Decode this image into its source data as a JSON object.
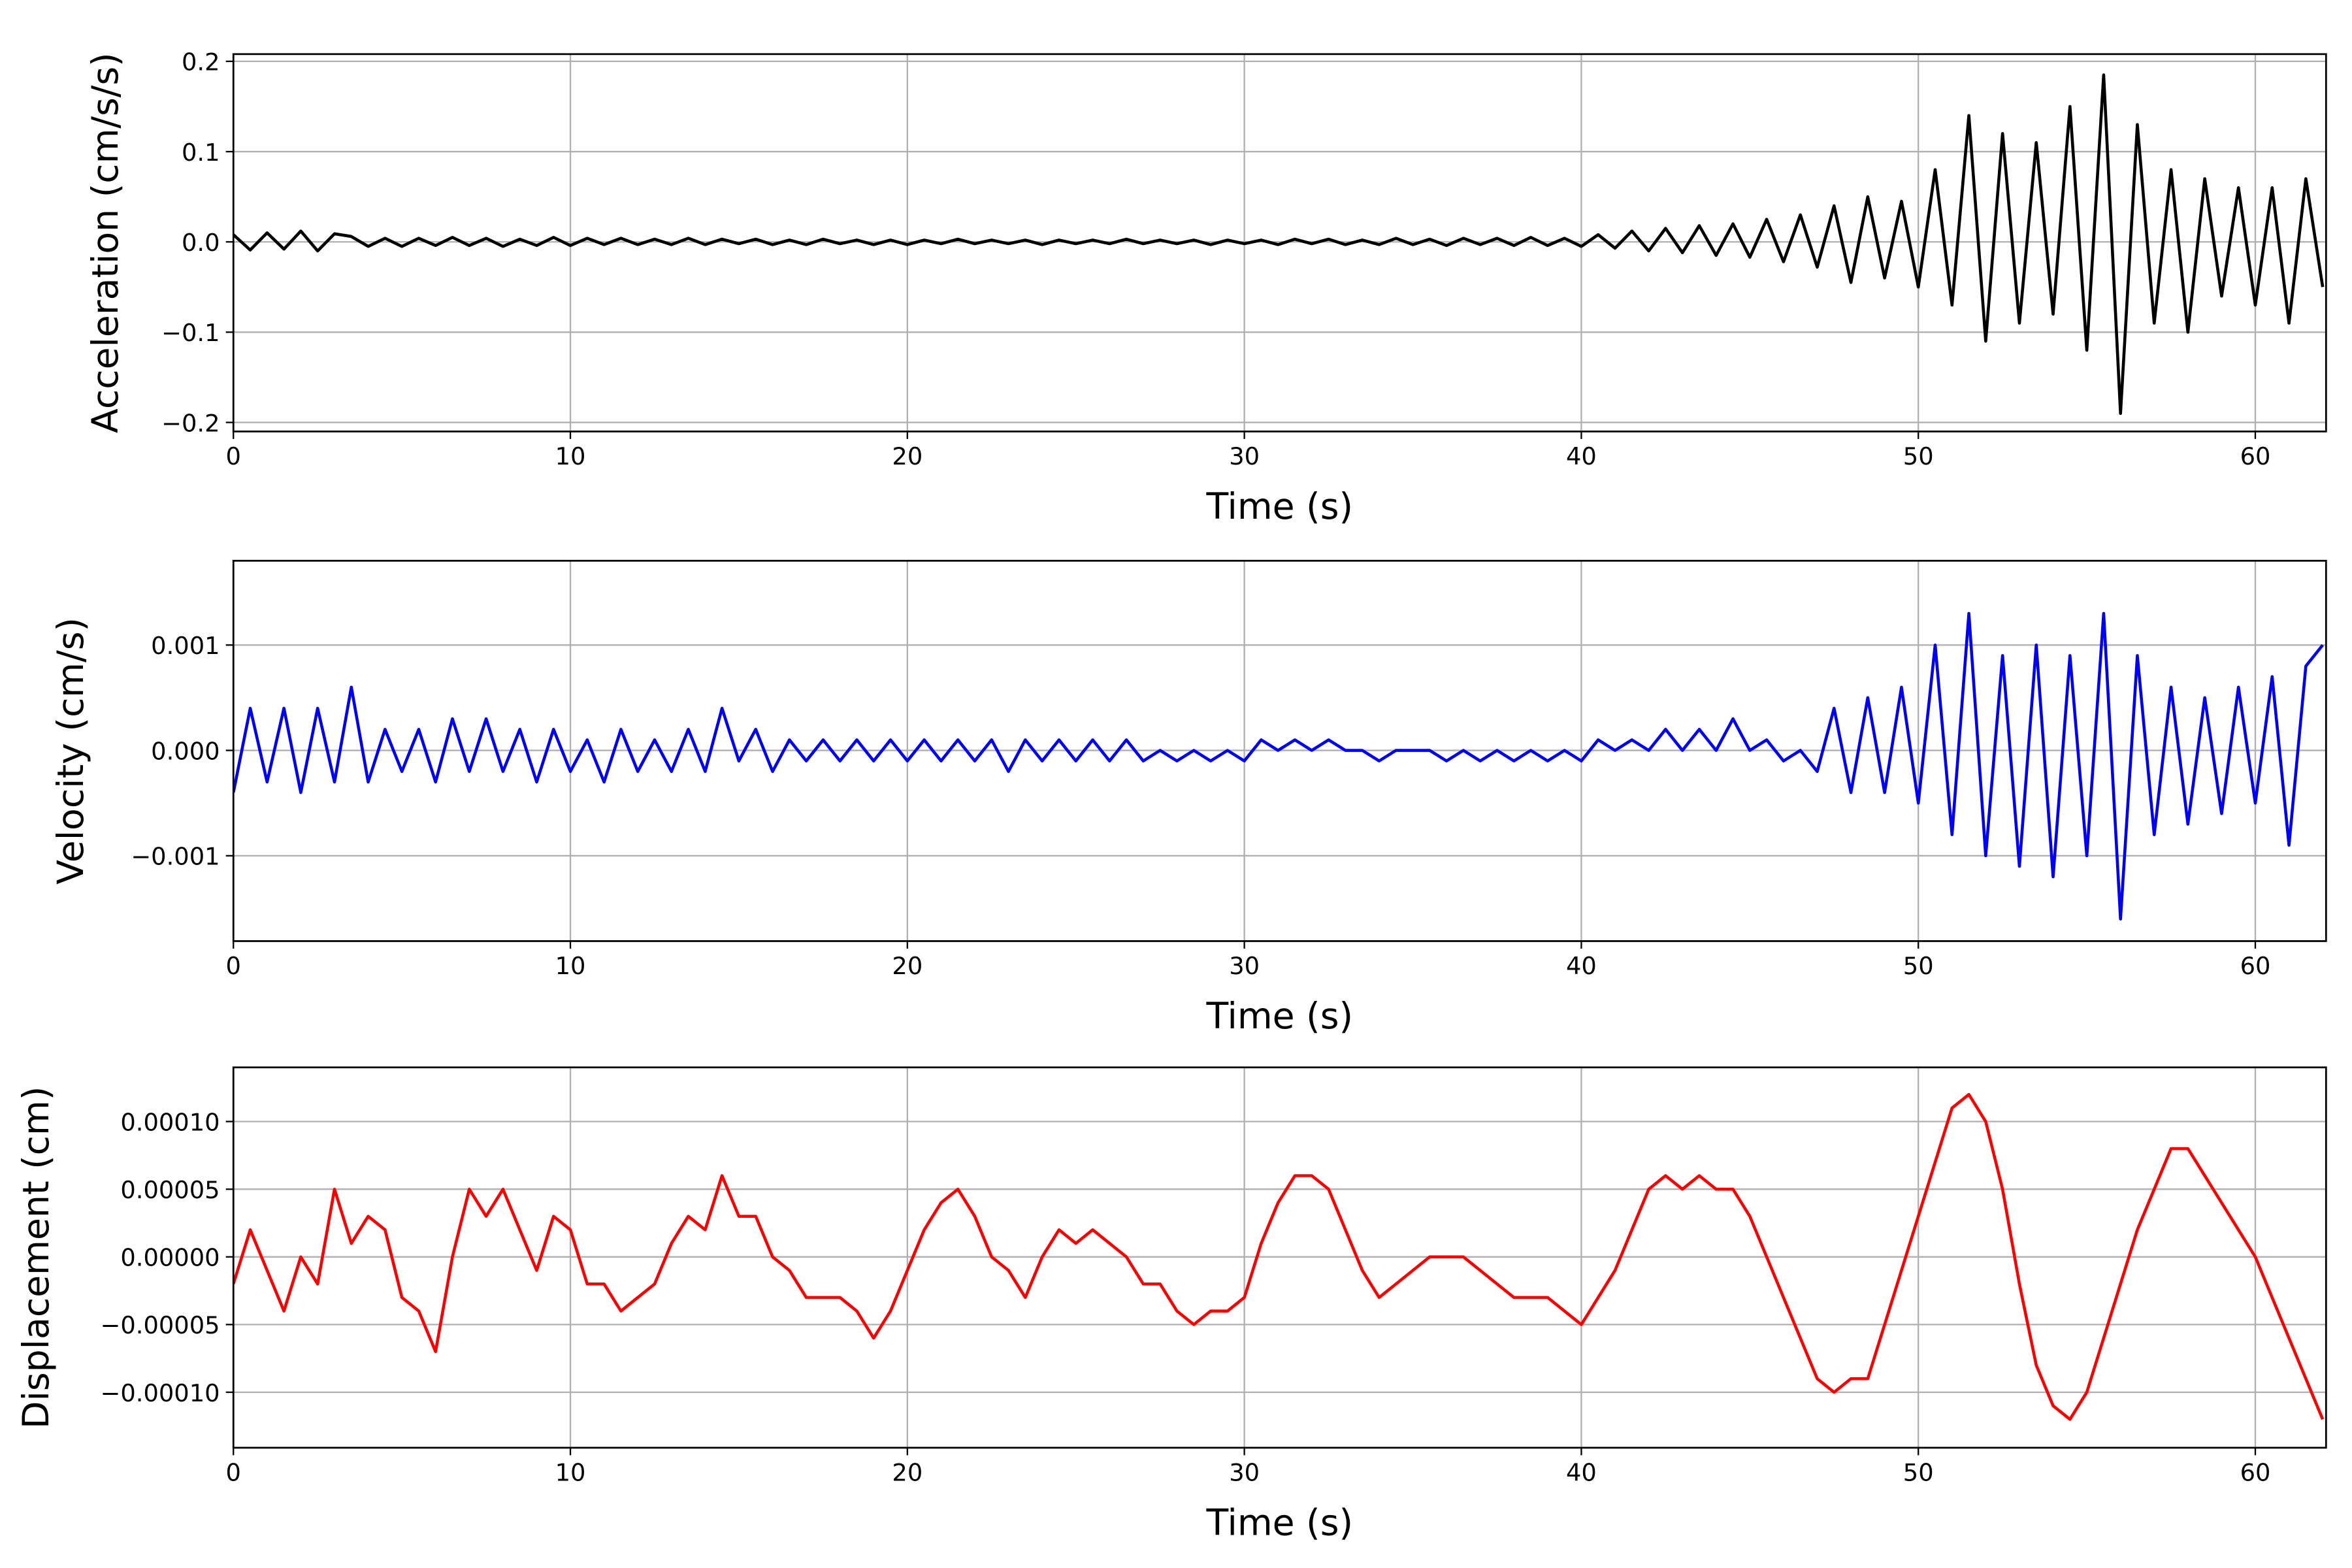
{
  "chart_data": [
    {
      "type": "line",
      "xlabel": "Time (s)",
      "ylabel": "Acceleration (cm/s/s)",
      "grid": true,
      "xlim": [
        0,
        62.1
      ],
      "xticks": [
        0,
        10,
        20,
        30,
        40,
        50,
        60
      ],
      "ylim": [
        -0.21,
        0.208
      ],
      "yticks": [
        {
          "value": -0.2,
          "label": "−0.2"
        },
        {
          "value": -0.1,
          "label": "−0.1"
        },
        {
          "value": 0,
          "label": "0.0"
        },
        0.1,
        0.2
      ],
      "x": [
        0,
        0.5,
        1,
        1.5,
        2,
        2.5,
        3,
        3.5,
        4,
        4.5,
        5,
        5.5,
        6,
        6.5,
        7,
        7.5,
        8,
        8.5,
        9,
        9.5,
        10,
        10.5,
        11,
        11.5,
        12,
        12.5,
        13,
        13.5,
        14,
        14.5,
        15,
        15.5,
        16,
        16.5,
        17,
        17.5,
        18,
        18.5,
        19,
        19.5,
        20,
        20.5,
        21,
        21.5,
        22,
        22.5,
        23,
        23.5,
        24,
        24.5,
        25,
        25.5,
        26,
        26.5,
        27,
        27.5,
        28,
        28.5,
        29,
        29.5,
        30,
        30.5,
        31,
        31.5,
        32,
        32.5,
        33,
        33.5,
        34,
        34.5,
        35,
        35.5,
        36,
        36.5,
        37,
        37.5,
        38,
        38.5,
        39,
        39.5,
        40,
        40.5,
        41,
        41.5,
        42,
        42.5,
        43,
        43.5,
        44,
        44.5,
        45,
        45.5,
        46,
        46.5,
        47,
        47.5,
        48,
        48.5,
        49,
        49.5,
        50,
        50.5,
        51,
        51.5,
        52,
        52.5,
        53,
        53.5,
        54,
        54.5,
        55,
        55.5,
        56,
        56.5,
        57,
        57.5,
        58,
        58.5,
        59,
        59.5,
        60,
        60.5,
        61,
        61.5,
        62
      ],
      "series": [
        {
          "color": "#000000",
          "values": [
            0.008,
            -0.009,
            0.01,
            -0.008,
            0.012,
            -0.01,
            0.009,
            0.006,
            -0.005,
            0.004,
            -0.005,
            0.004,
            -0.004,
            0.005,
            -0.004,
            0.004,
            -0.005,
            0.003,
            -0.004,
            0.005,
            -0.004,
            0.004,
            -0.003,
            0.004,
            -0.003,
            0.003,
            -0.003,
            0.004,
            -0.003,
            0.003,
            -0.002,
            0.003,
            -0.003,
            0.002,
            -0.003,
            0.003,
            -0.002,
            0.002,
            -0.003,
            0.002,
            -0.003,
            0.002,
            -0.002,
            0.003,
            -0.002,
            0.002,
            -0.002,
            0.002,
            -0.003,
            0.002,
            -0.002,
            0.002,
            -0.002,
            0.003,
            -0.002,
            0.002,
            -0.002,
            0.002,
            -0.003,
            0.002,
            -0.002,
            0.002,
            -0.003,
            0.003,
            -0.002,
            0.003,
            -0.003,
            0.002,
            -0.003,
            0.004,
            -0.003,
            0.003,
            -0.004,
            0.004,
            -0.003,
            0.004,
            -0.004,
            0.005,
            -0.004,
            0.004,
            -0.005,
            0.008,
            -0.007,
            0.012,
            -0.01,
            0.015,
            -0.012,
            0.018,
            -0.015,
            0.02,
            -0.017,
            0.025,
            -0.022,
            0.03,
            -0.028,
            0.04,
            -0.045,
            0.05,
            -0.04,
            0.045,
            -0.05,
            0.08,
            -0.07,
            0.14,
            -0.11,
            0.12,
            -0.09,
            0.11,
            -0.08,
            0.15,
            -0.12,
            0.185,
            -0.19,
            0.13,
            -0.09,
            0.08,
            -0.1,
            0.07,
            -0.06,
            0.06,
            -0.07,
            0.06,
            -0.09,
            0.07,
            -0.05
          ]
        }
      ]
    },
    {
      "type": "line",
      "xlabel": "Time (s)",
      "ylabel": "Velocity (cm/s)",
      "grid": true,
      "xlim": [
        0,
        62.1
      ],
      "xticks": [
        0,
        10,
        20,
        30,
        40,
        50,
        60
      ],
      "ylim": [
        -0.00181,
        0.0018
      ],
      "yticks": [
        {
          "value": -0.001,
          "label": "−0.001"
        },
        {
          "value": 0,
          "label": "0.000"
        },
        0.001
      ],
      "x": [
        0,
        0.5,
        1,
        1.5,
        2,
        2.5,
        3,
        3.5,
        4,
        4.5,
        5,
        5.5,
        6,
        6.5,
        7,
        7.5,
        8,
        8.5,
        9,
        9.5,
        10,
        10.5,
        11,
        11.5,
        12,
        12.5,
        13,
        13.5,
        14,
        14.5,
        15,
        15.5,
        16,
        16.5,
        17,
        17.5,
        18,
        18.5,
        19,
        19.5,
        20,
        20.5,
        21,
        21.5,
        22,
        22.5,
        23,
        23.5,
        24,
        24.5,
        25,
        25.5,
        26,
        26.5,
        27,
        27.5,
        28,
        28.5,
        29,
        29.5,
        30,
        30.5,
        31,
        31.5,
        32,
        32.5,
        33,
        33.5,
        34,
        34.5,
        35,
        35.5,
        36,
        36.5,
        37,
        37.5,
        38,
        38.5,
        39,
        39.5,
        40,
        40.5,
        41,
        41.5,
        42,
        42.5,
        43,
        43.5,
        44,
        44.5,
        45,
        45.5,
        46,
        46.5,
        47,
        47.5,
        48,
        48.5,
        49,
        49.5,
        50,
        50.5,
        51,
        51.5,
        52,
        52.5,
        53,
        53.5,
        54,
        54.5,
        55,
        55.5,
        56,
        56.5,
        57,
        57.5,
        58,
        58.5,
        59,
        59.5,
        60,
        60.5,
        61,
        61.5,
        62
      ],
      "series": [
        {
          "color": "#0000ff",
          "values": [
            -0.0004,
            0.0004,
            -0.0003,
            0.0004,
            -0.0004,
            0.0004,
            -0.0003,
            0.0006,
            -0.0003,
            0.0002,
            -0.0002,
            0.0002,
            -0.0003,
            0.0003,
            -0.0002,
            0.0003,
            -0.0002,
            0.0002,
            -0.0003,
            0.0002,
            -0.0002,
            0.0001,
            -0.0003,
            0.0002,
            -0.0002,
            0.0001,
            -0.0002,
            0.0002,
            -0.0002,
            0.0004,
            -0.0001,
            0.0002,
            -0.0002,
            0.0001,
            -0.0001,
            0.0001,
            -0.0001,
            0.0001,
            -0.0001,
            0.0001,
            -0.0001,
            0.0001,
            -0.0001,
            0.0001,
            -0.0001,
            0.0001,
            -0.0002,
            0.0001,
            -0.0001,
            0.0001,
            -0.0001,
            0.0001,
            -0.0001,
            0.0001,
            -0.0001,
            0,
            -0.0001,
            0,
            -0.0001,
            0,
            -0.0001,
            0.0001,
            0,
            0.0001,
            0,
            0.0001,
            0,
            0,
            -0.0001,
            0,
            0,
            0,
            -0.0001,
            0,
            -0.0001,
            0,
            -0.0001,
            0,
            -0.0001,
            0,
            -0.0001,
            0.0001,
            0,
            0.0001,
            0,
            0.0002,
            0,
            0.0002,
            0,
            0.0003,
            0,
            0.0001,
            -0.0001,
            0,
            -0.0002,
            0.0004,
            -0.0004,
            0.0005,
            -0.0004,
            0.0006,
            -0.0005,
            0.001,
            -0.0008,
            0.0013,
            -0.001,
            0.0009,
            -0.0011,
            0.001,
            -0.0012,
            0.0009,
            -0.001,
            0.0013,
            -0.0016,
            0.0009,
            -0.0008,
            0.0006,
            -0.0007,
            0.0005,
            -0.0006,
            0.0006,
            -0.0005,
            0.0007,
            -0.0009,
            0.0008,
            0.001
          ]
        }
      ]
    },
    {
      "type": "line",
      "xlabel": "Time (s)",
      "ylabel": "Displacement (cm)",
      "grid": true,
      "xlim": [
        0,
        62.1
      ],
      "xticks": [
        0,
        10,
        20,
        30,
        40,
        50,
        60
      ],
      "ylim": [
        -0.000141,
        0.00014
      ],
      "yticks": [
        {
          "value": -0.0001,
          "label": "−0.00010"
        },
        {
          "value": -5e-05,
          "label": "−0.00005"
        },
        {
          "value": 0,
          "label": "0.00000"
        },
        {
          "value": 5e-05,
          "label": "0.00005"
        },
        {
          "value": 0.0001,
          "label": "0.00010"
        }
      ],
      "x": [
        0,
        0.5,
        1,
        1.5,
        2,
        2.5,
        3,
        3.5,
        4,
        4.5,
        5,
        5.5,
        6,
        6.5,
        7,
        7.5,
        8,
        8.5,
        9,
        9.5,
        10,
        10.5,
        11,
        11.5,
        12,
        12.5,
        13,
        13.5,
        14,
        14.5,
        15,
        15.5,
        16,
        16.5,
        17,
        17.5,
        18,
        18.5,
        19,
        19.5,
        20,
        20.5,
        21,
        21.5,
        22,
        22.5,
        23,
        23.5,
        24,
        24.5,
        25,
        25.5,
        26,
        26.5,
        27,
        27.5,
        28,
        28.5,
        29,
        29.5,
        30,
        30.5,
        31,
        31.5,
        32,
        32.5,
        33,
        33.5,
        34,
        34.5,
        35,
        35.5,
        36,
        36.5,
        37,
        37.5,
        38,
        38.5,
        39,
        39.5,
        40,
        40.5,
        41,
        41.5,
        42,
        42.5,
        43,
        43.5,
        44,
        44.5,
        45,
        45.5,
        46,
        46.5,
        47,
        47.5,
        48,
        48.5,
        49,
        49.5,
        50,
        50.5,
        51,
        51.5,
        52,
        52.5,
        53,
        53.5,
        54,
        54.5,
        55,
        55.5,
        56,
        56.5,
        57,
        57.5,
        58,
        58.5,
        59,
        59.5,
        60,
        60.5,
        61,
        61.5,
        62
      ],
      "series": [
        {
          "color": "#ff0000",
          "values": [
            -2e-05,
            2e-05,
            -1e-05,
            -4e-05,
            0,
            -2e-05,
            5e-05,
            1e-05,
            3e-05,
            2e-05,
            -3e-05,
            -4e-05,
            -7e-05,
            0,
            5e-05,
            3e-05,
            5e-05,
            2e-05,
            -1e-05,
            3e-05,
            2e-05,
            -2e-05,
            -2e-05,
            -4e-05,
            -3e-05,
            -2e-05,
            1e-05,
            3e-05,
            2e-05,
            6e-05,
            3e-05,
            3e-05,
            0,
            -1e-05,
            -3e-05,
            -3e-05,
            -3e-05,
            -4e-05,
            -6e-05,
            -4e-05,
            -1e-05,
            2e-05,
            4e-05,
            5e-05,
            3e-05,
            0,
            -1e-05,
            -3e-05,
            0,
            2e-05,
            1e-05,
            2e-05,
            1e-05,
            0,
            -2e-05,
            -2e-05,
            -4e-05,
            -5e-05,
            -4e-05,
            -4e-05,
            -3e-05,
            1e-05,
            4e-05,
            6e-05,
            6e-05,
            5e-05,
            2e-05,
            -1e-05,
            -3e-05,
            -2e-05,
            -1e-05,
            0,
            0,
            0,
            -1e-05,
            -2e-05,
            -3e-05,
            -3e-05,
            -3e-05,
            -4e-05,
            -5e-05,
            -3e-05,
            -1e-05,
            2e-05,
            5e-05,
            6e-05,
            5e-05,
            6e-05,
            5e-05,
            5e-05,
            3e-05,
            0,
            -3e-05,
            -6e-05,
            -9e-05,
            -0.0001,
            -9e-05,
            -9e-05,
            -5e-05,
            -1e-05,
            3e-05,
            7e-05,
            0.00011,
            0.00012,
            0.0001,
            5e-05,
            -2e-05,
            -8e-05,
            -0.00011,
            -0.00012,
            -0.0001,
            -6e-05,
            -2e-05,
            2e-05,
            5e-05,
            8e-05,
            8e-05,
            6e-05,
            4e-05,
            2e-05,
            0,
            -3e-05,
            -6e-05,
            -9e-05,
            -0.00012
          ]
        }
      ]
    }
  ]
}
